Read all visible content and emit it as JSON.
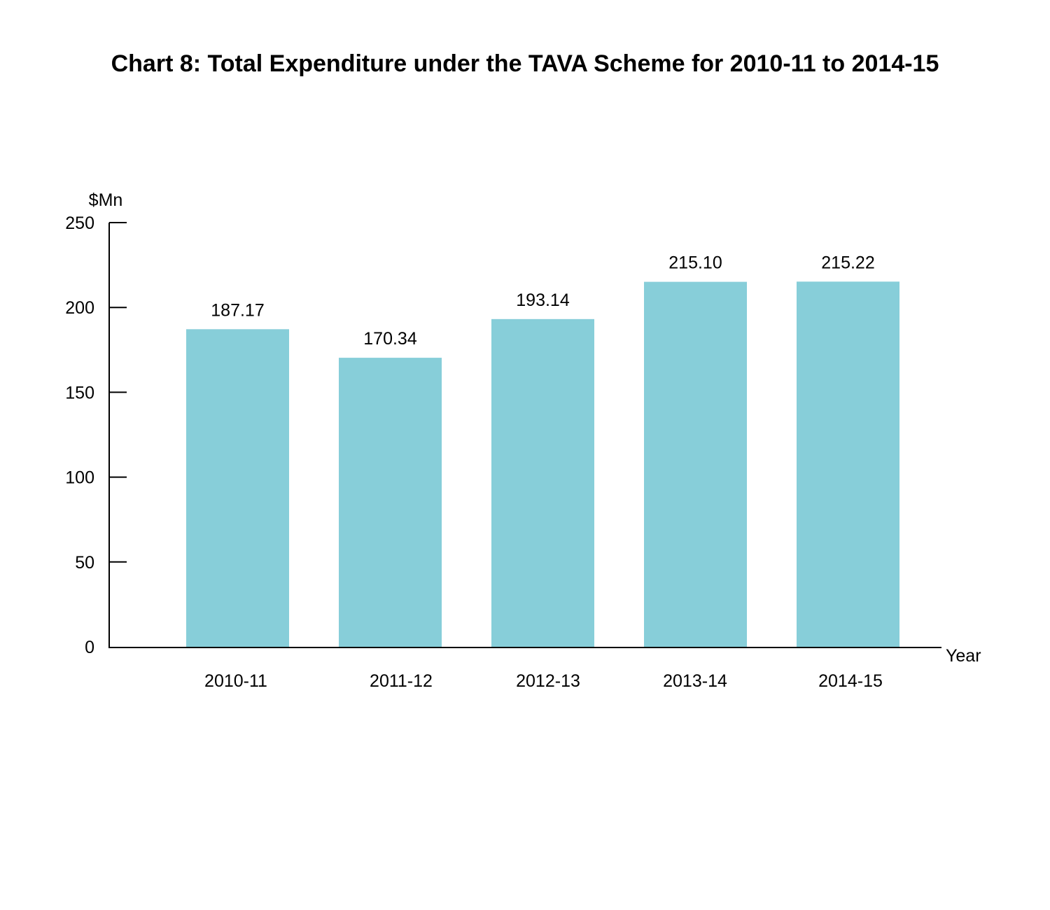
{
  "chart_data": {
    "type": "bar",
    "title": "Chart 8: Total Expenditure under the TAVA Scheme for 2010-11 to 2014-15",
    "ylabel": "$Mn",
    "xlabel": "Year",
    "categories": [
      "2010-11",
      "2011-12",
      "2012-13",
      "2013-14",
      "2014-15"
    ],
    "values": [
      187.17,
      170.34,
      193.14,
      215.1,
      215.22
    ],
    "data_labels": [
      "187.17",
      "170.34",
      "193.14",
      "215.10",
      "215.22"
    ],
    "ylim": [
      0,
      250
    ],
    "yticks": [
      0,
      50,
      100,
      150,
      200,
      250
    ],
    "grid": false,
    "legend": "none",
    "bar_color": "#87CED9",
    "axis_color": "#000000"
  }
}
